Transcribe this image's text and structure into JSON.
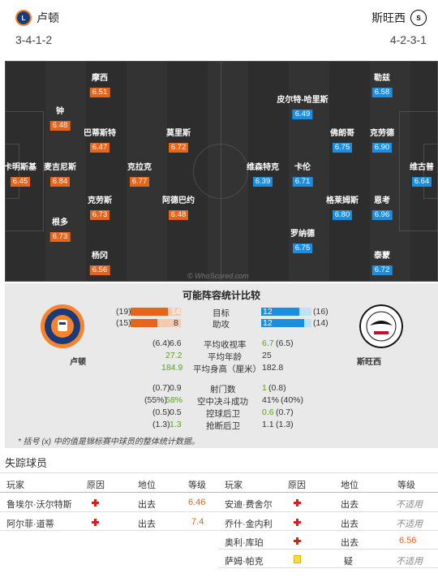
{
  "header": {
    "home": {
      "name": "卢顿",
      "formation": "3-4-1-2"
    },
    "away": {
      "name": "斯旺西",
      "formation": "4-2-3-1"
    }
  },
  "pitch": {
    "watermark": "© WhoScored.com",
    "home_players": [
      {
        "name": "卡明斯基",
        "rating": "6.45"
      },
      {
        "name": "钟",
        "rating": "6.48"
      },
      {
        "name": "麦吉尼斯",
        "rating": "6.84"
      },
      {
        "name": "根多",
        "rating": "6.73"
      },
      {
        "name": "摩西",
        "rating": "6.51"
      },
      {
        "name": "巴蒂斯特",
        "rating": "6.47"
      },
      {
        "name": "克劳斯",
        "rating": "6.73"
      },
      {
        "name": "杨冈",
        "rating": "6.56"
      },
      {
        "name": "克拉克",
        "rating": "6.77"
      },
      {
        "name": "莫里斯",
        "rating": "6.72"
      },
      {
        "name": "阿德巴约",
        "rating": "6.48"
      }
    ],
    "away_players": [
      {
        "name": "维古普",
        "rating": "6.64"
      },
      {
        "name": "勒兹",
        "rating": "6.58"
      },
      {
        "name": "佛朗哥",
        "rating": "6.75"
      },
      {
        "name": "克劳德",
        "rating": "6.90"
      },
      {
        "name": "格莱姆斯",
        "rating": "6.80"
      },
      {
        "name": "恩考",
        "rating": "6.96"
      },
      {
        "name": "泰蒙",
        "rating": "6.72"
      },
      {
        "name": "皮尔特-哈里斯",
        "rating": "6.49"
      },
      {
        "name": "卡伦",
        "rating": "6.71"
      },
      {
        "name": "罗纳德",
        "rating": "6.75"
      },
      {
        "name": "维森特克",
        "rating": "6.39"
      }
    ]
  },
  "stats": {
    "title": "可能阵容统计比较",
    "home_label": "卢顿",
    "away_label": "斯旺西",
    "bar_rows": [
      {
        "label": "目标",
        "home_total": "(19)",
        "home": "14",
        "home_share": 0.737,
        "away": "12",
        "away_total": "(16)",
        "away_share": 0.75
      },
      {
        "label": "助攻",
        "home_total": "(15)",
        "home": "8",
        "home_share": 0.533,
        "away": "12",
        "away_total": "(14)",
        "away_share": 0.857
      }
    ],
    "rows1": [
      {
        "label": "平均收视率",
        "home_total": "(6.4)",
        "home": "6.6",
        "away": "6.7",
        "away_total": "(6.5)",
        "home_green": false,
        "away_green": true
      },
      {
        "label": "平均年龄",
        "home_total": "",
        "home": "27.2",
        "away": "25",
        "away_total": "",
        "home_green": true,
        "away_green": false
      },
      {
        "label": "平均身高（厘米）",
        "home_total": "",
        "home": "184.9",
        "away": "182.8",
        "away_total": "",
        "home_green": true,
        "away_green": false
      }
    ],
    "rows2": [
      {
        "label": "射门数",
        "home_total": "(0.7)",
        "home": "0.9",
        "away": "1",
        "away_total": "(0.8)",
        "home_green": false,
        "away_green": true
      },
      {
        "label": "空中决斗成功",
        "home_total": "(55%)",
        "home": "58%",
        "away": "41%",
        "away_total": "(40%)",
        "home_green": true,
        "away_green": false
      },
      {
        "label": "控球后卫",
        "home_total": "(0.5)",
        "home": "0.5",
        "away": "0.6",
        "away_total": "(0.7)",
        "home_green": false,
        "away_green": true
      },
      {
        "label": "抢断后卫",
        "home_total": "(1.3)",
        "home": "1.3",
        "away": "1.1",
        "away_total": "(1.3)",
        "home_green": true,
        "away_green": false
      }
    ],
    "footnote": "* 括号 (x) 中的值是锦标赛中球员的整体统计数据。"
  },
  "missing": {
    "title": "失踪球员",
    "headers": {
      "player": "玩家",
      "reason": "原因",
      "status": "地位",
      "rating": "等级"
    },
    "home": [
      {
        "player": "鲁埃尔·沃尔特斯",
        "status": "出去",
        "rating": "6.46",
        "rating_style": "orange",
        "icon": "injury"
      },
      {
        "player": "阿尔菲·道蒂",
        "status": "出去",
        "rating": "7.4",
        "rating_style": "orange",
        "icon": "injury"
      }
    ],
    "away": [
      {
        "player": "安迪·费舍尔",
        "status": "出去",
        "rating": "不适用",
        "rating_style": "na",
        "icon": "injury"
      },
      {
        "player": "乔什·金内利",
        "status": "出去",
        "rating": "不适用",
        "rating_style": "na",
        "icon": "injury"
      },
      {
        "player": "奥利·库珀",
        "status": "出去",
        "rating": "6.56",
        "rating_style": "orange",
        "icon": "injury"
      },
      {
        "player": "萨姆·帕克",
        "status": "疑",
        "rating": "不适用",
        "rating_style": "na",
        "icon": "doubt"
      }
    ]
  },
  "colors": {
    "home_rating": "#e8641b",
    "away_rating": "#1a8ee0",
    "pitch": "#2d2d2d",
    "stats_bg": "#e9e9e9"
  }
}
